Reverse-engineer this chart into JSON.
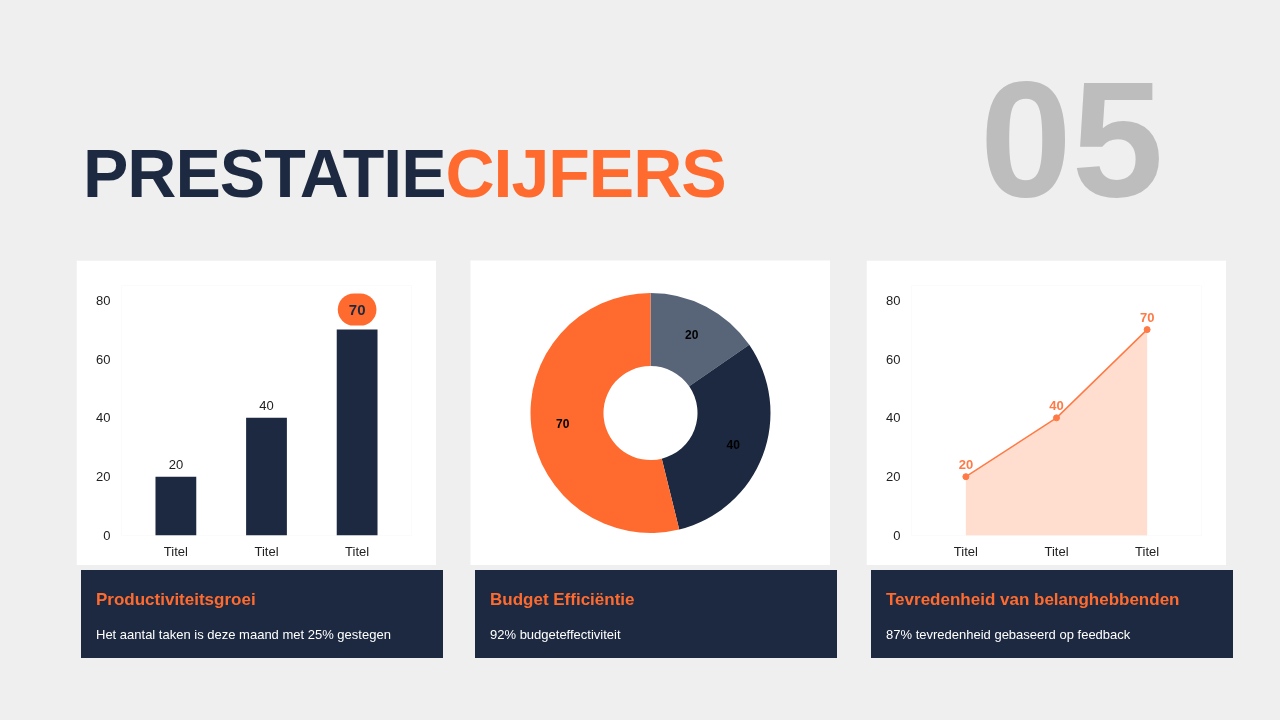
{
  "chart_data": [
    {
      "type": "other",
      "annotations": [
        "PRESTATIE",
        "CIJFERS",
        "05"
      ]
    },
    {
      "type": "bar",
      "title": "Productiviteitsgroei",
      "subtitle": "Het aantal taken is deze maand met 25% gestegen",
      "categories": [
        "Titel",
        "Titel",
        "Titel"
      ],
      "values": [
        20,
        40,
        70
      ],
      "color": "#1c2940",
      "ylim": [
        0,
        85
      ],
      "yticks": [
        0,
        20,
        40,
        60,
        80
      ],
      "grid": false,
      "data_labels": true
    },
    {
      "type": "donut",
      "title": "Budget Efficiëntie",
      "subtitle": "92% budgeteffectiviteit",
      "categories": [
        null,
        null,
        null
      ],
      "values": [
        20,
        40,
        70
      ],
      "colors": [
        "#586579",
        "#1c2940",
        "#ff6b2f"
      ],
      "data_labels": true
    },
    {
      "type": "area",
      "title": "Tevredenheid van belanghebbenden",
      "subtitle": "87% tevredenheid gebaseerd op feedback",
      "categories": [
        "Titel",
        "Titel",
        "Titel"
      ],
      "values": [
        20,
        40,
        70
      ],
      "color": "#ff7a45",
      "marker": "circle",
      "ylim": [
        0,
        85
      ],
      "yticks": [
        0,
        20,
        40,
        60,
        80
      ],
      "grid": false,
      "data_labels": true
    }
  ]
}
